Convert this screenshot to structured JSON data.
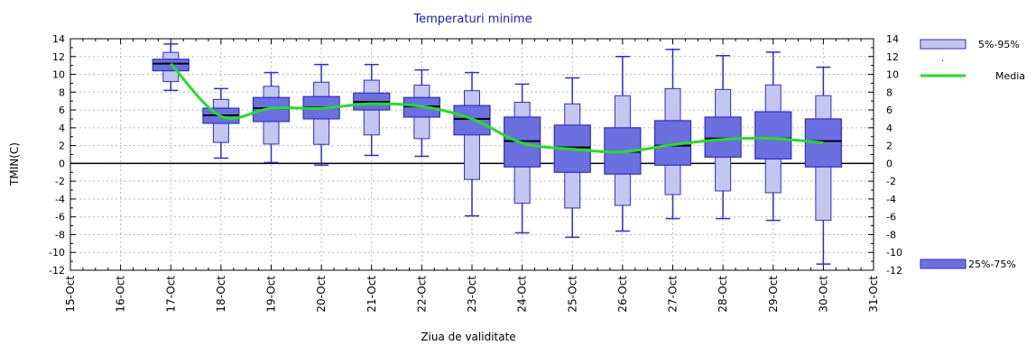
{
  "chart_data": {
    "type": "box",
    "title": "",
    "subtitle": "Temperaturi minime",
    "xlabel": "Ziua de validitate",
    "ylabel": "TMIN(C)",
    "ylim": [
      -12,
      14
    ],
    "yticks": [
      14,
      12,
      10,
      8,
      6,
      4,
      2,
      0,
      -2,
      -4,
      -6,
      -8,
      -10,
      -12
    ],
    "categories": [
      "15-Oct",
      "16-Oct",
      "17-Oct",
      "18-Oct",
      "19-Oct",
      "20-Oct",
      "21-Oct",
      "22-Oct",
      "23-Oct",
      "24-Oct",
      "25-Oct",
      "26-Oct",
      "27-Oct",
      "28-Oct",
      "29-Oct",
      "30-Oct",
      "31-Oct"
    ],
    "grid": true,
    "legend_position": "right",
    "legend": {
      "outer": "5%-95%",
      "mean": "Media",
      "inner": "25%-75%"
    },
    "colors": {
      "outer_fill": "#c4c6ef",
      "inner_fill": "#6b6fe0",
      "edge": "#2b2fc8",
      "mean_line": "#22e022",
      "median": "#000000",
      "subtitle": "#1a1acc"
    },
    "boxes": [
      {
        "day": "17-Oct",
        "p5": 8.2,
        "p25": 10.4,
        "median": 11.2,
        "p75": 11.7,
        "p95": 13.4,
        "mean": 11.2
      },
      {
        "day": "18-Oct",
        "p5": 0.6,
        "p25": 4.5,
        "median": 5.4,
        "p75": 6.2,
        "p95": 8.4,
        "mean": 5.3
      },
      {
        "day": "19-Oct",
        "p5": 0.1,
        "p25": 4.7,
        "median": 6.2,
        "p75": 7.4,
        "p95": 10.2,
        "mean": 6.2
      },
      {
        "day": "20-Oct",
        "p5": -0.2,
        "p25": 5.0,
        "median": 6.3,
        "p75": 7.5,
        "p95": 11.1,
        "mean": 6.2
      },
      {
        "day": "21-Oct",
        "p5": 0.9,
        "p25": 6.0,
        "median": 6.9,
        "p75": 7.9,
        "p95": 11.1,
        "mean": 6.7
      },
      {
        "day": "22-Oct",
        "p5": 0.8,
        "p25": 5.2,
        "median": 6.4,
        "p75": 7.4,
        "p95": 10.5,
        "mean": 6.4
      },
      {
        "day": "23-Oct",
        "p5": -5.9,
        "p25": 3.2,
        "median": 5.0,
        "p75": 6.5,
        "p95": 10.2,
        "mean": 5.0
      },
      {
        "day": "24-Oct",
        "p5": -7.8,
        "p25": -0.4,
        "median": 2.5,
        "p75": 5.2,
        "p95": 8.9,
        "mean": 2.3
      },
      {
        "day": "25-Oct",
        "p5": -8.3,
        "p25": -1.0,
        "median": 1.8,
        "p75": 4.3,
        "p95": 9.6,
        "mean": 1.6
      },
      {
        "day": "26-Oct",
        "p5": -7.6,
        "p25": -1.2,
        "median": 1.3,
        "p75": 4.0,
        "p95": 12.0,
        "mean": 1.3
      },
      {
        "day": "27-Oct",
        "p5": -6.2,
        "p25": -0.2,
        "median": 2.0,
        "p75": 4.8,
        "p95": 12.8,
        "mean": 2.1
      },
      {
        "day": "28-Oct",
        "p5": -6.2,
        "p25": 0.7,
        "median": 2.8,
        "p75": 5.2,
        "p95": 12.1,
        "mean": 2.7
      },
      {
        "day": "29-Oct",
        "p5": -6.4,
        "p25": 0.5,
        "median": 2.8,
        "p75": 5.8,
        "p95": 12.5,
        "mean": 2.8
      },
      {
        "day": "30-Oct",
        "p5": -11.3,
        "p25": -0.4,
        "median": 2.5,
        "p75": 5.0,
        "p95": 10.8,
        "mean": 2.3
      }
    ]
  }
}
